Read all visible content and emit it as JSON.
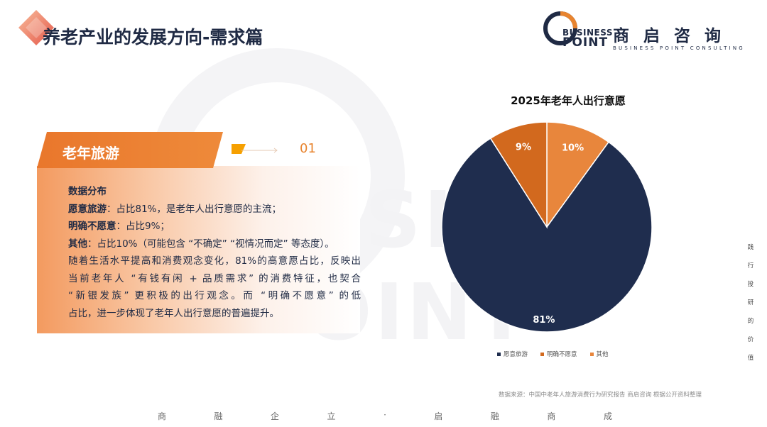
{
  "header": {
    "title": "养老产业的发展方向-需求篇"
  },
  "logo": {
    "business": "BUSINESS",
    "point": "POINT",
    "cn_name": "商启咨询",
    "en_name": "BUSINESS POINT CONSULTING"
  },
  "watermark": {
    "line1": "USI",
    "line2": "OINT"
  },
  "section": {
    "tag": "老年旅游",
    "number": "01"
  },
  "content": {
    "heading": "数据分布",
    "items": [
      {
        "label": "愿意旅游",
        "text": "：占比81%，是老年人出行意愿的主流；"
      },
      {
        "label": "明确不愿意",
        "text": "：占比9%；"
      },
      {
        "label": "其他",
        "text": "：占比10%（可能包含 “不确定” “视情况而定” 等态度）。"
      }
    ],
    "paragraph_lines": [
      "随着生活水平提高和消费观念变化，81%的高意愿占比，反映出",
      "当前老年人 “有钱有闲 + 品质需求” 的消费特征，也契合",
      "“新银发族” 更积极的出行观念。而 “明确不愿意” 的低",
      "占比，进一步体现了老年人出行意愿的普遍提升。"
    ]
  },
  "chart_data": {
    "type": "pie",
    "title": "2025年老年人出行意愿",
    "categories": [
      "愿意旅游",
      "明确不愿意",
      "其他"
    ],
    "values": [
      81,
      9,
      10
    ],
    "labels": [
      "81%",
      "9%",
      "10%"
    ],
    "colors": [
      "#1f2d4e",
      "#d2691e",
      "#e8863c"
    ],
    "legend_position": "bottom"
  },
  "source": "数据来源：中国中老年人旅游消费行为研究报告 商启咨询  根据公开资料整理",
  "side_text": [
    "践",
    "行",
    "投",
    "研",
    "的",
    "价",
    "值"
  ],
  "footer": [
    "商",
    "融",
    "企",
    "立",
    "·",
    "启",
    "融",
    "商",
    "成"
  ]
}
